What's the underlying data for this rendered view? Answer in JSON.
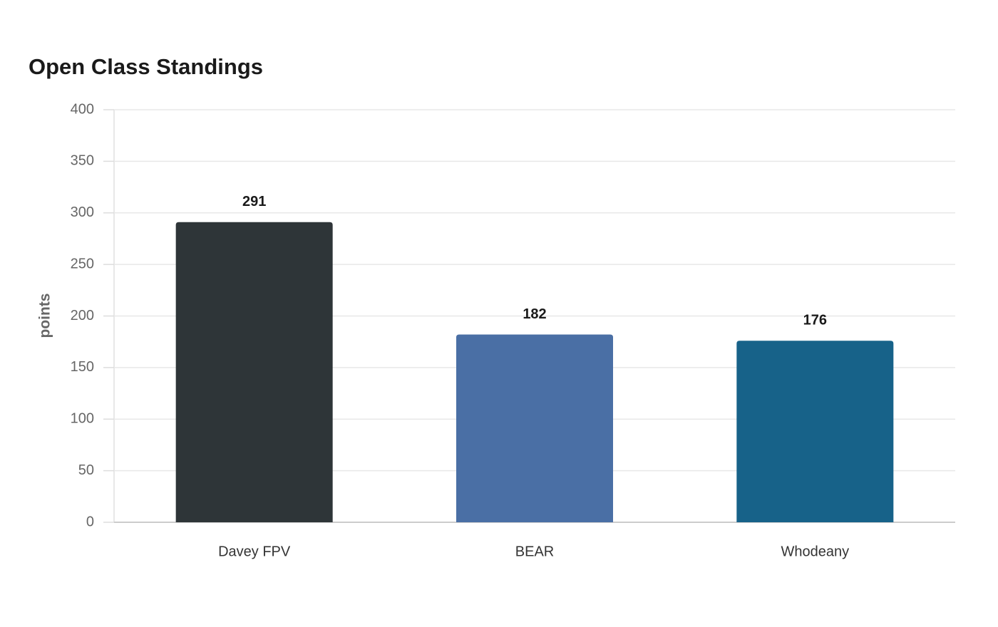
{
  "chart_data": {
    "type": "bar",
    "title": "Open Class Standings",
    "y_label": "points",
    "categories": [
      "Davey FPV",
      "BEAR",
      "Whodeany"
    ],
    "values": [
      291,
      182,
      176
    ],
    "colors": [
      "#2e3538",
      "#4a6fa5",
      "#176289"
    ],
    "ylim": [
      0,
      400
    ],
    "yticks": [
      0,
      50,
      100,
      150,
      200,
      250,
      300,
      350,
      400
    ],
    "grid": true,
    "show_value_labels": true
  }
}
